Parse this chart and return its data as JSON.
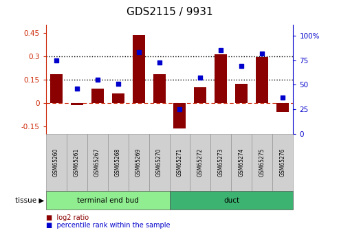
{
  "title": "GDS2115 / 9931",
  "samples": [
    "GSM65260",
    "GSM65261",
    "GSM65267",
    "GSM65268",
    "GSM65269",
    "GSM65270",
    "GSM65271",
    "GSM65272",
    "GSM65273",
    "GSM65274",
    "GSM65275",
    "GSM65276"
  ],
  "log2_ratio": [
    0.185,
    -0.015,
    0.09,
    0.06,
    0.435,
    0.185,
    -0.165,
    0.1,
    0.31,
    0.12,
    0.295,
    -0.06
  ],
  "percentile": [
    75,
    46,
    55,
    51,
    83,
    73,
    25,
    57,
    85,
    69,
    82,
    37
  ],
  "tissue_groups": [
    {
      "label": "terminal end bud",
      "start": 0,
      "end": 6,
      "color": "#90ee90"
    },
    {
      "label": "duct",
      "start": 6,
      "end": 12,
      "color": "#3cb371"
    }
  ],
  "bar_color": "#8B0000",
  "dot_color": "#0000cc",
  "ylim_left": [
    -0.2,
    0.5
  ],
  "ylim_right": [
    0,
    111
  ],
  "yticks_left": [
    -0.15,
    0,
    0.15,
    0.3,
    0.45
  ],
  "yticks_right": [
    0,
    25,
    50,
    75,
    100
  ],
  "hlines": [
    0.15,
    0.3
  ],
  "zero_line": 0.0,
  "background_color": "#ffffff",
  "left_axis_color": "#cc2200",
  "right_axis_color": "#0000cc",
  "tissue_label": "tissue",
  "legend_log2": "log2 ratio",
  "legend_pct": "percentile rank within the sample"
}
